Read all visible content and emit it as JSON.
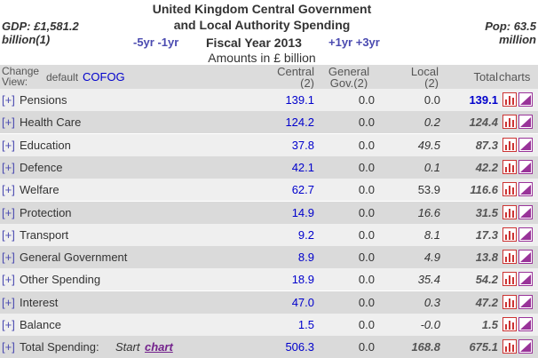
{
  "header": {
    "gdp": "GDP: £1,581.2 billion(1)",
    "title_line1": "United Kingdom Central Government",
    "title_line2": "and Local Authority Spending",
    "prev": "-5yr -1yr",
    "fiscal_year": "Fiscal Year 2013",
    "next": "+1yr +3yr",
    "units": "Amounts in £ billion",
    "pop": "Pop: 63.5 million"
  },
  "table": {
    "view_label": "Change View:",
    "view_default": "default",
    "view_cofog": "COFOG",
    "columns": [
      "Central (2)",
      "General Gov.(2)",
      "Local (2)",
      "Total",
      "charts"
    ],
    "expand": "[+]",
    "rows": [
      [
        "Pensions",
        "139.1",
        "0.0",
        "0.0",
        "139.1"
      ],
      [
        "Health Care",
        "124.2",
        "0.0",
        "0.2",
        "124.4"
      ],
      [
        "Education",
        "37.8",
        "0.0",
        "49.5",
        "87.3"
      ],
      [
        "Defence",
        "42.1",
        "0.0",
        "0.1",
        "42.2"
      ],
      [
        "Welfare",
        "62.7",
        "0.0",
        "53.9",
        "116.6"
      ],
      [
        "Protection",
        "14.9",
        "0.0",
        "16.6",
        "31.5"
      ],
      [
        "Transport",
        "9.2",
        "0.0",
        "8.1",
        "17.3"
      ],
      [
        "General Government",
        "8.9",
        "0.0",
        "4.9",
        "13.8"
      ],
      [
        "Other Spending",
        "18.9",
        "0.0",
        "35.4",
        "54.2"
      ],
      [
        "Interest",
        "47.0",
        "0.0",
        "0.3",
        "47.2"
      ],
      [
        "Balance",
        "1.5",
        "0.0",
        "-0.0",
        "1.5"
      ]
    ],
    "total": {
      "label": "Total Spending:",
      "start": "Start",
      "chart": "chart",
      "values": [
        "506.3",
        "0.0",
        "168.8",
        "675.1"
      ]
    }
  }
}
